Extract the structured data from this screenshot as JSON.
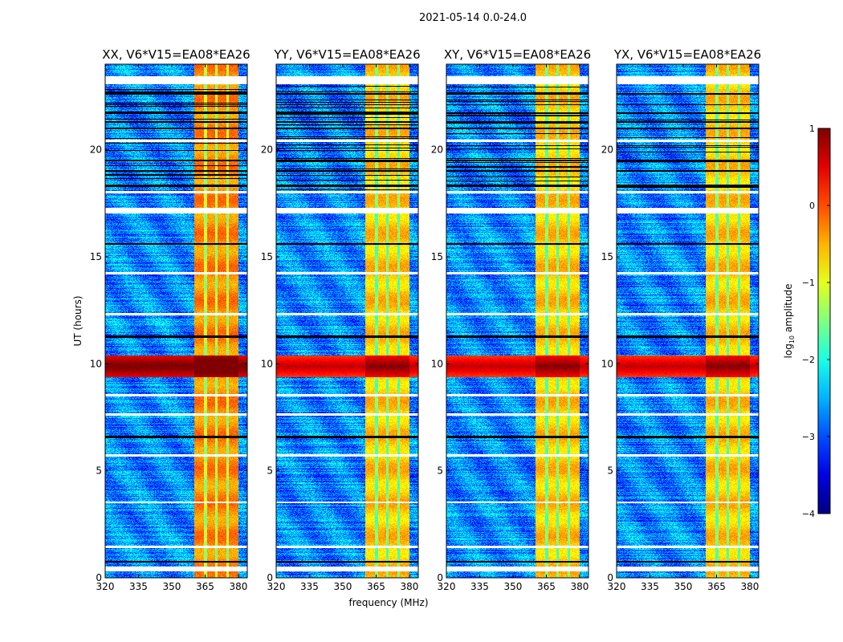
{
  "chart_data": {
    "type": "heatmap",
    "title": "2021-05-14 0.0-24.0",
    "xlabel": "frequency (MHz)",
    "ylabel": "UT (hours)",
    "xlim": [
      320,
      384
    ],
    "ylim": [
      0,
      24
    ],
    "xticks": [
      320,
      335,
      350,
      365,
      380
    ],
    "yticks": [
      0,
      5,
      10,
      15,
      20
    ],
    "panels": [
      {
        "title": "XX, V6*V15=EA08*EA26"
      },
      {
        "title": "YY, V6*V15=EA08*EA26"
      },
      {
        "title": "XY, V6*V15=EA08*EA26"
      },
      {
        "title": "YX, V6*V15=EA08*EA26"
      }
    ],
    "colorbar": {
      "label": "log",
      "label_sub": "10",
      "label_suffix": " amplitude",
      "range": [
        -4,
        1
      ],
      "ticks": [
        1,
        0,
        -1,
        -2,
        -3,
        -4
      ],
      "tick_labels": [
        "1",
        "0",
        "−1",
        "−2",
        "−3",
        "−4"
      ],
      "colormap": "jet"
    },
    "features": {
      "background_log_amp": -2.7,
      "rfi_band_MHz": [
        360,
        380
      ],
      "rfi_band_log_amp": -0.6,
      "rfi_subband_edges_MHz": [
        365,
        370,
        375
      ],
      "strong_rfi_hours": [
        9.4,
        10.4
      ],
      "strong_rfi_log_amp": 0.8,
      "flagged_white_hours": [
        [
          0.3,
          0.55
        ],
        [
          1.4,
          1.5
        ],
        [
          3.5,
          3.6
        ],
        [
          5.7,
          5.8
        ],
        [
          7.6,
          7.7
        ],
        [
          8.5,
          8.6
        ],
        [
          12.3,
          12.4
        ],
        [
          14.2,
          14.3
        ],
        [
          17.05,
          17.3
        ],
        [
          18.0,
          18.1
        ],
        [
          20.4,
          20.5
        ],
        [
          23.1,
          23.45
        ]
      ],
      "flagged_black_hours": [
        [
          0.75,
          0.82
        ],
        [
          6.55,
          6.65
        ],
        [
          11.25,
          11.35
        ],
        [
          15.6,
          15.65
        ],
        [
          18.3,
          18.38
        ],
        [
          19.0,
          19.05
        ],
        [
          19.5,
          19.55
        ],
        [
          21.0,
          21.05
        ],
        [
          21.3,
          21.35
        ],
        [
          21.7,
          21.75
        ],
        [
          22.1,
          22.15
        ],
        [
          22.6,
          22.65
        ]
      ]
    }
  }
}
